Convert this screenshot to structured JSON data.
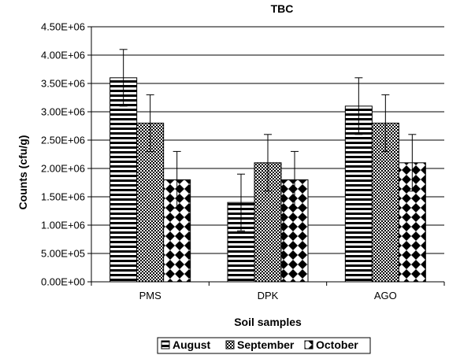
{
  "chart_data": {
    "type": "bar",
    "title": "TBC",
    "xlabel": "Soil samples",
    "ylabel": "Counts (cfu/g)",
    "categories": [
      "PMS",
      "DPK",
      "AGO"
    ],
    "ylim": [
      0,
      4500000
    ],
    "yticks": [
      0,
      500000,
      1000000,
      1500000,
      2000000,
      2500000,
      3000000,
      3500000,
      4000000,
      4500000
    ],
    "ytick_labels": [
      "0.00E+00",
      "5.00E+05",
      "1.00E+06",
      "1.50E+06",
      "2.00E+06",
      "2.50E+06",
      "3.00E+06",
      "3.50E+06",
      "4.00E+06",
      "4.50E+06"
    ],
    "grid": true,
    "legend_position": "bottom",
    "series": [
      {
        "name": "August",
        "values": [
          3600000,
          1400000,
          3100000
        ],
        "errors": [
          500000,
          500000,
          500000
        ],
        "pattern": "horizontal-stripes"
      },
      {
        "name": "September",
        "values": [
          2800000,
          2100000,
          2800000
        ],
        "errors": [
          500000,
          500000,
          500000
        ],
        "pattern": "checker"
      },
      {
        "name": "October",
        "values": [
          1800000,
          1800000,
          2100000
        ],
        "errors": [
          500000,
          500000,
          500000
        ],
        "pattern": "diamonds"
      }
    ]
  }
}
